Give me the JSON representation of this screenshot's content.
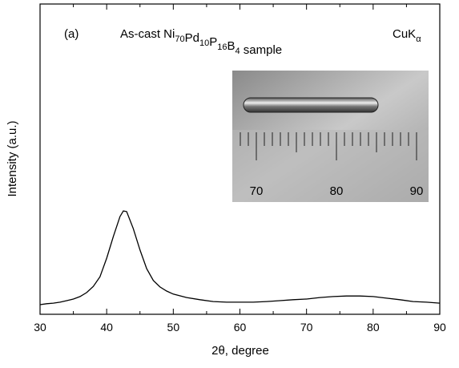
{
  "chart_data": {
    "type": "line",
    "annotations": [
      "(a)",
      "As-cast Ni70Pd10P16B4 sample",
      "CuKα"
    ],
    "x_label": "2θ, degree",
    "y_label": "Intensity (a.u.)",
    "x": [
      30,
      31,
      32,
      33,
      34,
      35,
      36,
      37,
      38,
      39,
      40,
      41,
      42,
      42.5,
      43,
      44,
      45,
      46,
      47,
      48,
      49,
      50,
      52,
      54,
      56,
      58,
      60,
      62,
      64,
      66,
      68,
      70,
      72,
      74,
      76,
      78,
      80,
      82,
      84,
      86,
      88,
      90
    ],
    "values": [
      3.1,
      3.4,
      3.6,
      3.9,
      4.4,
      4.9,
      5.7,
      7.0,
      9.0,
      12.1,
      18.1,
      25.1,
      31.5,
      33.3,
      33.1,
      27.6,
      20.7,
      14.7,
      10.9,
      8.8,
      7.5,
      6.5,
      5.4,
      4.7,
      4.1,
      3.9,
      3.9,
      3.9,
      4.1,
      4.4,
      4.7,
      4.9,
      5.4,
      5.7,
      5.9,
      5.9,
      5.7,
      5.2,
      4.7,
      4.1,
      3.9,
      3.6
    ],
    "color": "#000000",
    "xlim": [
      30,
      90
    ],
    "xticks": [
      30,
      40,
      50,
      60,
      70,
      80,
      90
    ],
    "xminorticks": [
      35,
      45,
      55,
      65,
      75,
      85
    ],
    "ylim": [
      0,
      100
    ]
  },
  "inset": {
    "ruler_labels": [
      "70",
      "80",
      "90"
    ]
  }
}
